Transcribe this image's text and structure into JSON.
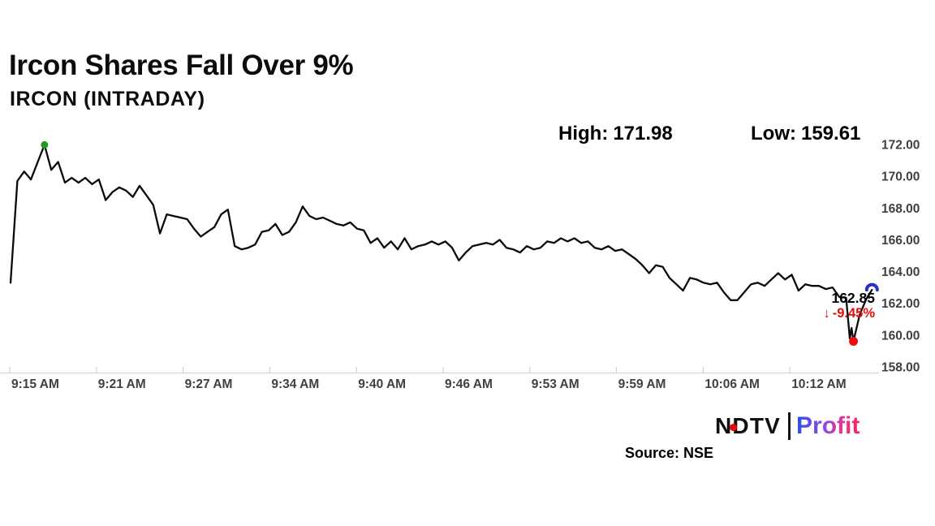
{
  "header": {
    "title": "Ircon Shares Fall Over 9%",
    "subtitle": "IRCON (INTRADAY)"
  },
  "stats": {
    "high_label": "High:",
    "high_value": "171.98",
    "low_label": "Low:",
    "low_value": "159.61"
  },
  "annotations": {
    "last_price": "162.85",
    "down_arrow": "↓",
    "change_percent": "-9.45%"
  },
  "footer": {
    "source": "Source: NSE",
    "brand_ndtv": "NDTV",
    "brand_separator": "|",
    "brand_profit": "Profit"
  },
  "colors": {
    "line": "#0b0b0b",
    "high_dot": "#1f9b1f",
    "low_dot": "#ee0d0d",
    "last_marker": "#2b2fc9",
    "negative": "#e60f0f",
    "axis_text": "#404040",
    "axis_line": "#d8d8d8",
    "tick": "#c9c9c9",
    "ndtv_dot": "#e60c0c",
    "profit_gradient": [
      "#2b4fe4",
      "#8a4ae8",
      "#f62d86",
      "#f4265f"
    ]
  },
  "chart_data": {
    "type": "line",
    "title": "IRCON (INTRADAY)",
    "x_unit": "minutes after 9:15 AM",
    "x_ticks": [
      "9:15 AM",
      "9:21 AM",
      "9:27 AM",
      "9:34 AM",
      "9:40 AM",
      "9:46 AM",
      "9:53 AM",
      "9:59 AM",
      "10:06 AM",
      "10:12 AM"
    ],
    "y_ticks": [
      "172.00",
      "170.00",
      "168.00",
      "166.00",
      "164.00",
      "162.00",
      "160.00",
      "158.00"
    ],
    "y_axis": {
      "min": 158,
      "max": 172,
      "step": 2
    },
    "grid": "off",
    "legend": "none",
    "high": 171.98,
    "low": 159.61,
    "last": 162.85,
    "change_pct": -9.45,
    "series": [
      {
        "name": "IRCON",
        "points": [
          [
            0,
            163.3
          ],
          [
            0.5,
            169.7
          ],
          [
            1,
            170.3
          ],
          [
            1.5,
            169.8
          ],
          [
            2,
            170.9
          ],
          [
            2.5,
            171.98
          ],
          [
            3,
            170.4
          ],
          [
            3.5,
            170.9
          ],
          [
            4,
            169.6
          ],
          [
            4.5,
            169.9
          ],
          [
            5,
            169.6
          ],
          [
            5.5,
            169.9
          ],
          [
            6,
            169.5
          ],
          [
            6.5,
            169.8
          ],
          [
            7,
            168.5
          ],
          [
            7.5,
            169
          ],
          [
            8,
            169.3
          ],
          [
            8.5,
            169.1
          ],
          [
            9,
            168.7
          ],
          [
            9.5,
            169.4
          ],
          [
            10,
            168.8
          ],
          [
            10.5,
            168.2
          ],
          [
            11,
            166.4
          ],
          [
            11.5,
            167.6
          ],
          [
            12,
            167.5
          ],
          [
            12.5,
            167.4
          ],
          [
            13,
            167.3
          ],
          [
            13.5,
            166.7
          ],
          [
            14,
            166.2
          ],
          [
            14.5,
            166.5
          ],
          [
            15,
            166.8
          ],
          [
            15.5,
            167.6
          ],
          [
            16,
            167.9
          ],
          [
            16.5,
            165.6
          ],
          [
            17,
            165.4
          ],
          [
            17.5,
            165.5
          ],
          [
            18,
            165.7
          ],
          [
            18.5,
            166.5
          ],
          [
            19,
            166.6
          ],
          [
            19.5,
            167
          ],
          [
            20,
            166.3
          ],
          [
            20.5,
            166.5
          ],
          [
            21,
            167.1
          ],
          [
            21.5,
            168.1
          ],
          [
            22,
            167.5
          ],
          [
            22.5,
            167.3
          ],
          [
            23,
            167.4
          ],
          [
            23.5,
            167.2
          ],
          [
            24,
            167
          ],
          [
            24.5,
            166.9
          ],
          [
            25,
            167.1
          ],
          [
            25.5,
            166.7
          ],
          [
            26,
            166.6
          ],
          [
            26.5,
            165.8
          ],
          [
            27,
            166.1
          ],
          [
            27.5,
            165.5
          ],
          [
            28,
            165.9
          ],
          [
            28.5,
            165.4
          ],
          [
            29,
            166.1
          ],
          [
            29.5,
            165.4
          ],
          [
            30,
            165.6
          ],
          [
            30.5,
            165.7
          ],
          [
            31,
            165.9
          ],
          [
            31.5,
            165.7
          ],
          [
            32,
            165.9
          ],
          [
            32.5,
            165.5
          ],
          [
            33,
            164.7
          ],
          [
            33.5,
            165.2
          ],
          [
            34,
            165.6
          ],
          [
            34.5,
            165.7
          ],
          [
            35,
            165.8
          ],
          [
            35.5,
            165.7
          ],
          [
            36,
            166
          ],
          [
            36.5,
            165.5
          ],
          [
            37,
            165.4
          ],
          [
            37.5,
            165.2
          ],
          [
            38,
            165.6
          ],
          [
            38.5,
            165.4
          ],
          [
            39,
            165.5
          ],
          [
            39.5,
            165.9
          ],
          [
            40,
            165.8
          ],
          [
            40.5,
            166.1
          ],
          [
            41,
            165.9
          ],
          [
            41.5,
            166.1
          ],
          [
            42,
            165.8
          ],
          [
            42.5,
            165.9
          ],
          [
            43,
            165.5
          ],
          [
            43.5,
            165.4
          ],
          [
            44,
            165.6
          ],
          [
            44.5,
            165.3
          ],
          [
            45,
            165.4
          ],
          [
            45.5,
            165.1
          ],
          [
            46,
            164.8
          ],
          [
            46.5,
            164.4
          ],
          [
            47,
            163.9
          ],
          [
            47.5,
            164.4
          ],
          [
            48,
            164.3
          ],
          [
            48.5,
            163.6
          ],
          [
            49,
            163.2
          ],
          [
            49.5,
            162.8
          ],
          [
            50,
            163.6
          ],
          [
            50.5,
            163.5
          ],
          [
            51,
            163.3
          ],
          [
            51.5,
            163.2
          ],
          [
            52,
            163.3
          ],
          [
            52.5,
            162.7
          ],
          [
            53,
            162.2
          ],
          [
            53.5,
            162.2
          ],
          [
            54,
            162.7
          ],
          [
            54.5,
            163.2
          ],
          [
            55,
            163.3
          ],
          [
            55.5,
            163.1
          ],
          [
            56,
            163.5
          ],
          [
            56.5,
            163.9
          ],
          [
            57,
            163.5
          ],
          [
            57.5,
            163.8
          ],
          [
            58,
            162.8
          ],
          [
            58.5,
            163.2
          ],
          [
            59,
            163.1
          ],
          [
            59.5,
            163.1
          ],
          [
            60,
            162.9
          ],
          [
            60.5,
            163
          ],
          [
            61,
            162.4
          ],
          [
            61.5,
            162.35
          ],
          [
            61.77,
            159.8
          ],
          [
            61.9,
            160.45
          ],
          [
            62.04,
            159.61
          ],
          [
            62.5,
            161.3
          ],
          [
            63,
            162.3
          ],
          [
            63.4,
            162.85
          ]
        ]
      }
    ]
  }
}
